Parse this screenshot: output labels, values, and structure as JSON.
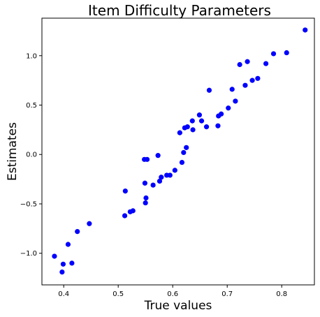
{
  "chart_data": {
    "type": "scatter",
    "title": "Item Difficulty Parameters",
    "xlabel": "True values",
    "ylabel": "Estimates",
    "xlim": [
      0.36,
      0.86
    ],
    "ylim": [
      -1.32,
      1.38
    ],
    "x_ticks": [
      0.4,
      0.5,
      0.6,
      0.7,
      0.8
    ],
    "x_tick_labels": [
      "0.4",
      "0.5",
      "0.6",
      "0.7",
      "0.8"
    ],
    "y_ticks": [
      -1.0,
      -0.5,
      0.0,
      0.5,
      1.0
    ],
    "y_tick_labels": [
      "−1.0",
      "−0.5",
      "0.0",
      "0.5",
      "1.0"
    ],
    "grid": false,
    "marker_color": "#0000ff",
    "points": [
      {
        "x": 0.383,
        "y": -1.03
      },
      {
        "x": 0.397,
        "y": -1.19
      },
      {
        "x": 0.399,
        "y": -1.11
      },
      {
        "x": 0.408,
        "y": -0.91
      },
      {
        "x": 0.415,
        "y": -1.1
      },
      {
        "x": 0.425,
        "y": -0.78
      },
      {
        "x": 0.447,
        "y": -0.7
      },
      {
        "x": 0.512,
        "y": -0.62
      },
      {
        "x": 0.513,
        "y": -0.37
      },
      {
        "x": 0.522,
        "y": -0.58
      },
      {
        "x": 0.527,
        "y": -0.57
      },
      {
        "x": 0.548,
        "y": -0.05
      },
      {
        "x": 0.549,
        "y": -0.29
      },
      {
        "x": 0.55,
        "y": -0.49
      },
      {
        "x": 0.551,
        "y": -0.44
      },
      {
        "x": 0.553,
        "y": -0.05
      },
      {
        "x": 0.564,
        "y": -0.31
      },
      {
        "x": 0.573,
        "y": -0.01
      },
      {
        "x": 0.576,
        "y": -0.27
      },
      {
        "x": 0.579,
        "y": -0.23
      },
      {
        "x": 0.589,
        "y": -0.21
      },
      {
        "x": 0.595,
        "y": -0.21
      },
      {
        "x": 0.604,
        "y": -0.16
      },
      {
        "x": 0.613,
        "y": 0.22
      },
      {
        "x": 0.617,
        "y": -0.08
      },
      {
        "x": 0.62,
        "y": 0.02
      },
      {
        "x": 0.622,
        "y": 0.27
      },
      {
        "x": 0.625,
        "y": 0.07
      },
      {
        "x": 0.627,
        "y": 0.28
      },
      {
        "x": 0.636,
        "y": 0.34
      },
      {
        "x": 0.637,
        "y": 0.25
      },
      {
        "x": 0.649,
        "y": 0.4
      },
      {
        "x": 0.653,
        "y": 0.34
      },
      {
        "x": 0.662,
        "y": 0.28
      },
      {
        "x": 0.667,
        "y": 0.65
      },
      {
        "x": 0.683,
        "y": 0.29
      },
      {
        "x": 0.684,
        "y": 0.39
      },
      {
        "x": 0.689,
        "y": 0.41
      },
      {
        "x": 0.702,
        "y": 0.47
      },
      {
        "x": 0.709,
        "y": 0.66
      },
      {
        "x": 0.715,
        "y": 0.54
      },
      {
        "x": 0.723,
        "y": 0.91
      },
      {
        "x": 0.733,
        "y": 0.7
      },
      {
        "x": 0.737,
        "y": 0.94
      },
      {
        "x": 0.746,
        "y": 0.75
      },
      {
        "x": 0.756,
        "y": 0.77
      },
      {
        "x": 0.771,
        "y": 0.92
      },
      {
        "x": 0.785,
        "y": 1.02
      },
      {
        "x": 0.809,
        "y": 1.03
      },
      {
        "x": 0.843,
        "y": 1.26
      }
    ]
  }
}
